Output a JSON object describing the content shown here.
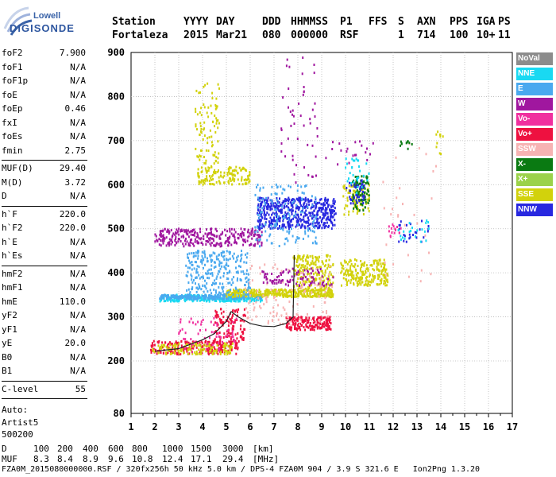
{
  "logo": {
    "line1": "Lowell",
    "line2": "DIGISONDE"
  },
  "header": {
    "labels": [
      "Station",
      "YYYY",
      "DAY",
      "DDD",
      "HHMMSS",
      "P1",
      "FFS",
      "S",
      "AXN",
      "PPS",
      "IGA",
      "PS"
    ],
    "values": [
      "Fortaleza",
      "2015",
      "Mar21",
      "080",
      "000000",
      "RSF",
      "1",
      "714",
      "100",
      "10+",
      "11"
    ]
  },
  "params": {
    "group1": [
      {
        "k": "foF2",
        "v": "7.900"
      },
      {
        "k": "foF1",
        "v": "N/A"
      },
      {
        "k": "foF1p",
        "v": "N/A"
      },
      {
        "k": "foE",
        "v": "N/A"
      },
      {
        "k": "foEp",
        "v": "0.46"
      },
      {
        "k": "fxI",
        "v": "N/A"
      },
      {
        "k": "foEs",
        "v": "N/A"
      },
      {
        "k": "fmin",
        "v": "2.75"
      }
    ],
    "group2": [
      {
        "k": "MUF(D)",
        "v": "29.40"
      },
      {
        "k": "M(D)",
        "v": "3.72"
      },
      {
        "k": "D",
        "v": "N/A"
      }
    ],
    "group3": [
      {
        "k": "h`F",
        "v": "220.0"
      },
      {
        "k": "h`F2",
        "v": "220.0"
      },
      {
        "k": "h`E",
        "v": "N/A"
      },
      {
        "k": "h`Es",
        "v": "N/A"
      }
    ],
    "group4": [
      {
        "k": "hmF2",
        "v": "N/A"
      },
      {
        "k": "hmF1",
        "v": "N/A"
      },
      {
        "k": "hmE",
        "v": "110.0"
      },
      {
        "k": "yF2",
        "v": "N/A"
      },
      {
        "k": "yF1",
        "v": "N/A"
      },
      {
        "k": "yE",
        "v": "20.0"
      },
      {
        "k": "B0",
        "v": "N/A"
      },
      {
        "k": "B1",
        "v": "N/A"
      }
    ],
    "clevel": {
      "k": "C-level",
      "v": "55"
    },
    "auto": [
      "Auto:",
      "Artist5",
      "500200"
    ]
  },
  "legend": [
    {
      "label": "NoVal",
      "color": "#8c8c8c"
    },
    {
      "label": "NNE",
      "color": "#19d9f2"
    },
    {
      "label": "E",
      "color": "#4aa9ef"
    },
    {
      "label": "W",
      "color": "#a0179f"
    },
    {
      "label": "Vo-",
      "color": "#f0309f"
    },
    {
      "label": "Vo+",
      "color": "#ee1140"
    },
    {
      "label": "SSW",
      "color": "#f7b3b3"
    },
    {
      "label": "X-",
      "color": "#0a7a12"
    },
    {
      "label": "X+",
      "color": "#9bd24a"
    },
    {
      "label": "SSE",
      "color": "#d2d20c"
    },
    {
      "label": "NNW",
      "color": "#2828e0"
    }
  ],
  "chart_data": {
    "type": "scatter",
    "xlim": [
      1,
      17
    ],
    "ylim": [
      80,
      900
    ],
    "xticks": [
      1,
      2,
      3,
      4,
      5,
      6,
      7,
      8,
      9,
      10,
      11,
      12,
      13,
      14,
      15,
      16,
      17
    ],
    "yticks": [
      80,
      200,
      300,
      400,
      500,
      600,
      700,
      800,
      900
    ],
    "grid": true,
    "trace": {
      "name": "virtual height profile",
      "points": [
        [
          2.0,
          222
        ],
        [
          2.5,
          225
        ],
        [
          3.0,
          228
        ],
        [
          3.5,
          238
        ],
        [
          4.0,
          248
        ],
        [
          4.5,
          262
        ],
        [
          5.0,
          290
        ],
        [
          5.2,
          312
        ],
        [
          5.5,
          300
        ],
        [
          6.0,
          285
        ],
        [
          6.5,
          279
        ],
        [
          7.0,
          278
        ],
        [
          7.5,
          285
        ],
        [
          7.8,
          300
        ],
        [
          7.85,
          440
        ]
      ]
    },
    "clusters": [
      {
        "mode": "Vo+",
        "x": [
          1.8,
          5.5
        ],
        "y": [
          215,
          245
        ],
        "n": 220
      },
      {
        "mode": "SSE",
        "x": [
          1.9,
          5.3
        ],
        "y": [
          215,
          240
        ],
        "n": 140
      },
      {
        "mode": "Vo+",
        "x": [
          4.5,
          5.8
        ],
        "y": [
          240,
          320
        ],
        "n": 120
      },
      {
        "mode": "Vo-",
        "x": [
          3.0,
          5.5
        ],
        "y": [
          220,
          300
        ],
        "n": 60
      },
      {
        "mode": "NNE",
        "x": [
          2.2,
          6.5
        ],
        "y": [
          335,
          350
        ],
        "n": 260
      },
      {
        "mode": "E",
        "x": [
          2.2,
          6.5
        ],
        "y": [
          340,
          350
        ],
        "n": 200
      },
      {
        "mode": "SSE",
        "x": [
          5.0,
          9.5
        ],
        "y": [
          345,
          362
        ],
        "n": 360
      },
      {
        "mode": "E",
        "x": [
          3.3,
          6.0
        ],
        "y": [
          350,
          450
        ],
        "n": 260
      },
      {
        "mode": "W",
        "x": [
          2.0,
          6.5
        ],
        "y": [
          460,
          500
        ],
        "n": 300
      },
      {
        "mode": "SSE",
        "x": [
          3.8,
          6.0
        ],
        "y": [
          600,
          640
        ],
        "n": 140
      },
      {
        "mode": "SSE",
        "x": [
          3.7,
          4.7
        ],
        "y": [
          640,
          830
        ],
        "n": 90
      },
      {
        "mode": "NNW",
        "x": [
          6.3,
          9.6
        ],
        "y": [
          500,
          570
        ],
        "n": 520
      },
      {
        "mode": "E",
        "x": [
          6.2,
          8.8
        ],
        "y": [
          460,
          600
        ],
        "n": 140
      },
      {
        "mode": "W",
        "x": [
          7.3,
          8.9
        ],
        "y": [
          600,
          890
        ],
        "n": 50
      },
      {
        "mode": "Vo+",
        "x": [
          7.5,
          9.4
        ],
        "y": [
          270,
          300
        ],
        "n": 180
      },
      {
        "mode": "SSE",
        "x": [
          7.8,
          9.5
        ],
        "y": [
          360,
          440
        ],
        "n": 200
      },
      {
        "mode": "SSW",
        "x": [
          5.8,
          9.5
        ],
        "y": [
          280,
          420
        ],
        "n": 120
      },
      {
        "mode": "W",
        "x": [
          6.5,
          9.5
        ],
        "y": [
          370,
          410
        ],
        "n": 90
      },
      {
        "mode": "SSE",
        "x": [
          9.8,
          11.8
        ],
        "y": [
          370,
          430
        ],
        "n": 220
      },
      {
        "mode": "SSE",
        "x": [
          9.9,
          11.0
        ],
        "y": [
          530,
          600
        ],
        "n": 80
      },
      {
        "mode": "X-",
        "x": [
          10.3,
          11.0
        ],
        "y": [
          540,
          620
        ],
        "n": 90
      },
      {
        "mode": "NNW",
        "x": [
          10.0,
          10.8
        ],
        "y": [
          555,
          610
        ],
        "n": 40
      },
      {
        "mode": "SSW",
        "x": [
          11.5,
          13.8
        ],
        "y": [
          380,
          700
        ],
        "n": 30
      },
      {
        "mode": "NNW",
        "x": [
          12.2,
          13.5
        ],
        "y": [
          470,
          520
        ],
        "n": 25
      },
      {
        "mode": "NNE",
        "x": [
          12.2,
          13.5
        ],
        "y": [
          470,
          520
        ],
        "n": 20
      },
      {
        "mode": "X-",
        "x": [
          12.3,
          12.8
        ],
        "y": [
          680,
          700
        ],
        "n": 10
      },
      {
        "mode": "SSE",
        "x": [
          13.8,
          14.2
        ],
        "y": [
          660,
          720
        ],
        "n": 10
      },
      {
        "mode": "Vo-",
        "x": [
          11.8,
          12.4
        ],
        "y": [
          480,
          510
        ],
        "n": 15
      },
      {
        "mode": "W",
        "x": [
          9.0,
          11.2
        ],
        "y": [
          640,
          700
        ],
        "n": 20
      },
      {
        "mode": "NNE",
        "x": [
          10.0,
          11.0
        ],
        "y": [
          580,
          660
        ],
        "n": 30
      }
    ]
  },
  "bottom": {
    "d_label": "D",
    "d_values": [
      "100",
      "200",
      "400",
      "600",
      "800",
      "1000",
      "1500",
      "3000",
      "[km]"
    ],
    "muf_label": "MUF",
    "muf_values": [
      "8.3",
      "8.4",
      "8.9",
      "9.6",
      "10.8",
      "12.4",
      "17.1",
      "29.4",
      "[MHz]"
    ],
    "footer": "FZA0M_2015080000000.RSF / 320fx256h 50 kHz 5.0 km / DPS-4 FZA0M 904 / 3.9 S 321.6 E   Ion2Png 1.3.20"
  }
}
